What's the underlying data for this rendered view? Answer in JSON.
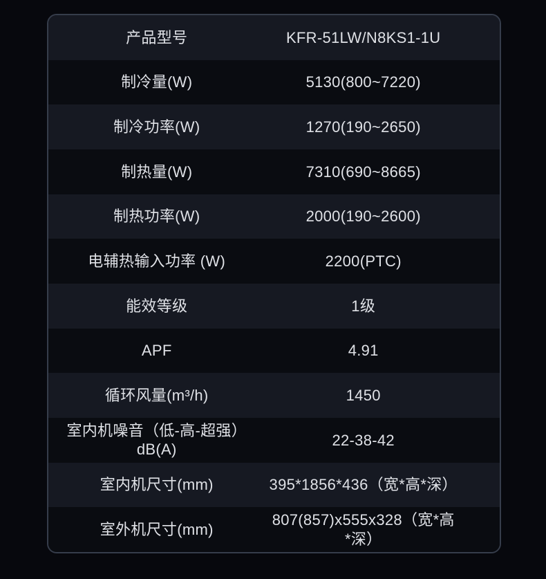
{
  "colors": {
    "page_bg": "#07080d",
    "row_light": "#161922",
    "row_dark": "#0a0c11",
    "border": "#363d4b",
    "text": "#dfe1e6"
  },
  "table": {
    "rows": [
      {
        "label": "产品型号",
        "value": "KFR-51LW/N8KS1-1U"
      },
      {
        "label": "制冷量(W)",
        "value": "5130(800~7220)"
      },
      {
        "label": "制冷功率(W)",
        "value": "1270(190~2650)"
      },
      {
        "label": "制热量(W)",
        "value": "7310(690~8665)"
      },
      {
        "label": "制热功率(W)",
        "value": "2000(190~2600)"
      },
      {
        "label": "电辅热输入功率 (W)",
        "value": "2200(PTC)"
      },
      {
        "label": "能效等级",
        "value": "1级"
      },
      {
        "label": "APF",
        "value": "4.91"
      },
      {
        "label": "循环风量(m³/h)",
        "value": "1450"
      },
      {
        "label": "室内机噪音（低-高-超强）dB(A)",
        "value": "22-38-42"
      },
      {
        "label": "室内机尺寸(mm)",
        "value": "395*1856*436（宽*高*深）"
      },
      {
        "label": "室外机尺寸(mm)",
        "value": "807(857)x555x328（宽*高*深）"
      }
    ]
  }
}
